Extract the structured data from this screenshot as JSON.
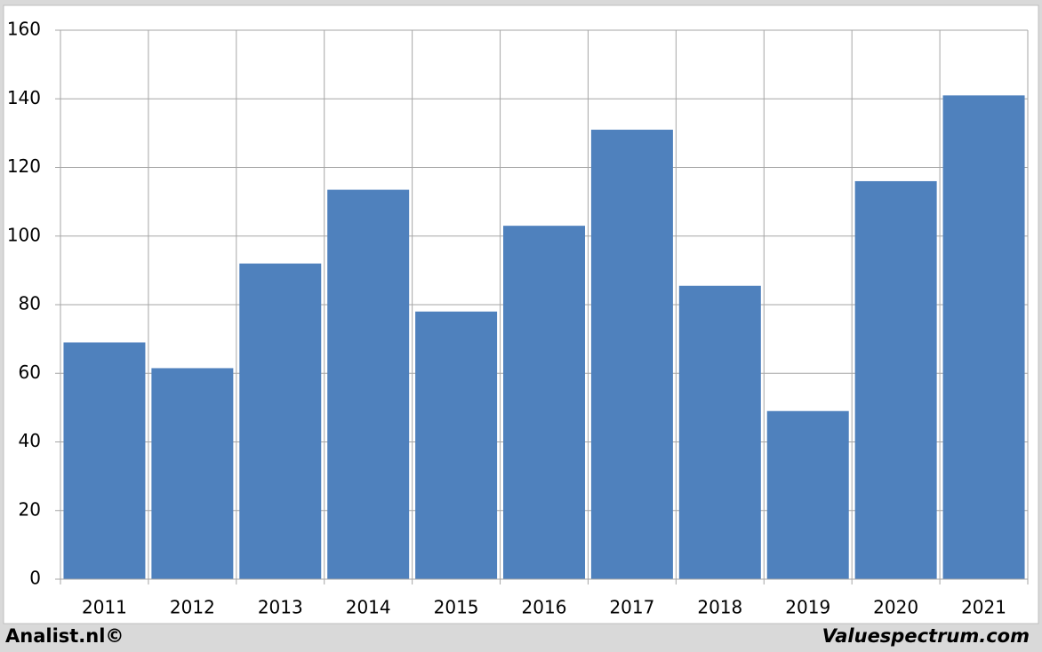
{
  "chart_data": {
    "type": "bar",
    "categories": [
      "2011",
      "2012",
      "2013",
      "2014",
      "2015",
      "2016",
      "2017",
      "2018",
      "2019",
      "2020",
      "2021"
    ],
    "values": [
      69,
      61.5,
      92,
      113.5,
      78,
      103,
      131,
      85.5,
      49,
      116,
      141
    ],
    "color": "#4f81bd",
    "ylim": [
      0,
      160
    ],
    "yticks": [
      0,
      20,
      40,
      60,
      80,
      100,
      120,
      140,
      160
    ],
    "grid": true,
    "source": "Analist.nl©",
    "watermark": "Valuespectrum.com"
  }
}
